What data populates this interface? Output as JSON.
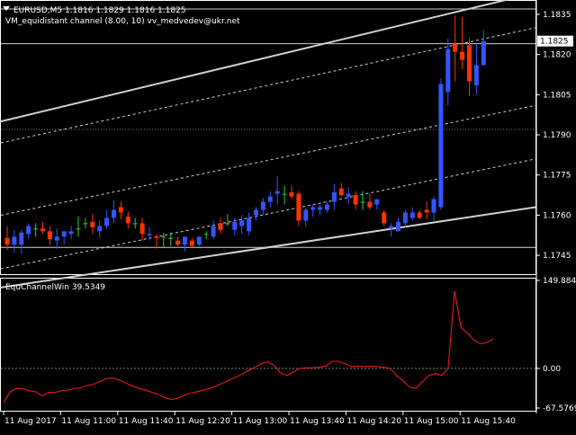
{
  "window": {
    "symbol_title": "EURUSD,M5  1.1816 1.1829 1.1816 1.1825",
    "indicator_label": "VM_equidistant channel (8.00,  10)  vv_medvedev@ukr.net"
  },
  "colors": {
    "background": "#000000",
    "bull_candle": "#3355ff",
    "bear_candle": "#ff3300",
    "doji_candle": "#33cc33",
    "channel_line": "#d0d0d0",
    "oscillator": "#ff1a1a",
    "grid_dot": "#808080",
    "axis": "#ffffff"
  },
  "chart_data": [
    {
      "type": "candlestick",
      "title": "EURUSD,M5  1.1816 1.1829 1.1816 1.1825",
      "ylim": [
        1.1738,
        1.184
      ],
      "y_ticks": [
        "1.1835",
        "1.1820",
        "1.1805",
        "1.1790",
        "1.1775",
        "1.1760",
        "1.1745"
      ],
      "y_tick_values": [
        1.1835,
        1.182,
        1.1805,
        1.179,
        1.1775,
        1.176,
        1.1745
      ],
      "current_price_label": "1.1825",
      "current_price": 1.1825,
      "candles": [
        {
          "o": 1.17515,
          "h": 1.1756,
          "l": 1.1747,
          "c": 1.1749
        },
        {
          "o": 1.1749,
          "h": 1.17545,
          "l": 1.1746,
          "c": 1.1752
        },
        {
          "o": 1.1749,
          "h": 1.17545,
          "l": 1.17455,
          "c": 1.17535
        },
        {
          "o": 1.1753,
          "h": 1.1757,
          "l": 1.1751,
          "c": 1.1756
        },
        {
          "o": 1.1755,
          "h": 1.1757,
          "l": 1.1752,
          "c": 1.1755
        },
        {
          "o": 1.1755,
          "h": 1.17575,
          "l": 1.1753,
          "c": 1.1754
        },
        {
          "o": 1.1754,
          "h": 1.1756,
          "l": 1.1749,
          "c": 1.1751
        },
        {
          "o": 1.17505,
          "h": 1.1755,
          "l": 1.17475,
          "c": 1.1752
        },
        {
          "o": 1.1752,
          "h": 1.1754,
          "l": 1.1749,
          "c": 1.1754
        },
        {
          "o": 1.1753,
          "h": 1.1756,
          "l": 1.1751,
          "c": 1.1754
        },
        {
          "o": 1.1755,
          "h": 1.17595,
          "l": 1.1752,
          "c": 1.1755
        },
        {
          "o": 1.1757,
          "h": 1.1759,
          "l": 1.1755,
          "c": 1.1757
        },
        {
          "o": 1.17575,
          "h": 1.17605,
          "l": 1.1753,
          "c": 1.17555
        },
        {
          "o": 1.1754,
          "h": 1.1758,
          "l": 1.17515,
          "c": 1.1756
        },
        {
          "o": 1.1756,
          "h": 1.1762,
          "l": 1.1755,
          "c": 1.1759
        },
        {
          "o": 1.1759,
          "h": 1.17655,
          "l": 1.1757,
          "c": 1.1762
        },
        {
          "o": 1.1763,
          "h": 1.1765,
          "l": 1.17585,
          "c": 1.1761
        },
        {
          "o": 1.17595,
          "h": 1.17615,
          "l": 1.1755,
          "c": 1.1757
        },
        {
          "o": 1.1757,
          "h": 1.1759,
          "l": 1.1755,
          "c": 1.1757
        },
        {
          "o": 1.1757,
          "h": 1.1759,
          "l": 1.17505,
          "c": 1.1753
        },
        {
          "o": 1.17525,
          "h": 1.17555,
          "l": 1.17505,
          "c": 1.1753
        },
        {
          "o": 1.1752,
          "h": 1.1753,
          "l": 1.17475,
          "c": 1.17515
        },
        {
          "o": 1.1752,
          "h": 1.17535,
          "l": 1.1748,
          "c": 1.1752
        },
        {
          "o": 1.17515,
          "h": 1.17535,
          "l": 1.17485,
          "c": 1.17515
        },
        {
          "o": 1.17505,
          "h": 1.1752,
          "l": 1.17485,
          "c": 1.1749
        },
        {
          "o": 1.1749,
          "h": 1.1751,
          "l": 1.17465,
          "c": 1.1752
        },
        {
          "o": 1.17505,
          "h": 1.17515,
          "l": 1.17485,
          "c": 1.17485
        },
        {
          "o": 1.1749,
          "h": 1.1752,
          "l": 1.17485,
          "c": 1.1752
        },
        {
          "o": 1.1753,
          "h": 1.1754,
          "l": 1.1751,
          "c": 1.1753
        },
        {
          "o": 1.1752,
          "h": 1.1758,
          "l": 1.1751,
          "c": 1.1756
        },
        {
          "o": 1.1757,
          "h": 1.1759,
          "l": 1.1753,
          "c": 1.17545
        },
        {
          "o": 1.1757,
          "h": 1.17605,
          "l": 1.1756,
          "c": 1.1757
        },
        {
          "o": 1.17545,
          "h": 1.1759,
          "l": 1.17525,
          "c": 1.17575
        },
        {
          "o": 1.1756,
          "h": 1.176,
          "l": 1.1753,
          "c": 1.1758
        },
        {
          "o": 1.1754,
          "h": 1.1761,
          "l": 1.17525,
          "c": 1.1759
        },
        {
          "o": 1.176,
          "h": 1.1763,
          "l": 1.1758,
          "c": 1.1762
        },
        {
          "o": 1.1762,
          "h": 1.17665,
          "l": 1.176,
          "c": 1.1765
        },
        {
          "o": 1.1765,
          "h": 1.1769,
          "l": 1.1763,
          "c": 1.1767
        },
        {
          "o": 1.1768,
          "h": 1.17745,
          "l": 1.1764,
          "c": 1.1769
        },
        {
          "o": 1.1768,
          "h": 1.1771,
          "l": 1.1764,
          "c": 1.1768
        },
        {
          "o": 1.17685,
          "h": 1.1771,
          "l": 1.1766,
          "c": 1.1767
        },
        {
          "o": 1.1768,
          "h": 1.1769,
          "l": 1.1756,
          "c": 1.1758
        },
        {
          "o": 1.1758,
          "h": 1.1763,
          "l": 1.17555,
          "c": 1.1762
        },
        {
          "o": 1.1762,
          "h": 1.1764,
          "l": 1.17595,
          "c": 1.1763
        },
        {
          "o": 1.1762,
          "h": 1.1764,
          "l": 1.176,
          "c": 1.1763
        },
        {
          "o": 1.1762,
          "h": 1.1765,
          "l": 1.1761,
          "c": 1.1764
        },
        {
          "o": 1.1765,
          "h": 1.17715,
          "l": 1.1762,
          "c": 1.17685
        },
        {
          "o": 1.177,
          "h": 1.1772,
          "l": 1.1767,
          "c": 1.17675
        },
        {
          "o": 1.1767,
          "h": 1.17705,
          "l": 1.1764,
          "c": 1.1768
        },
        {
          "o": 1.17675,
          "h": 1.1769,
          "l": 1.1762,
          "c": 1.1764
        },
        {
          "o": 1.1765,
          "h": 1.1769,
          "l": 1.1762,
          "c": 1.1765
        },
        {
          "o": 1.1765,
          "h": 1.1768,
          "l": 1.1762,
          "c": 1.1763
        },
        {
          "o": 1.1764,
          "h": 1.1766,
          "l": 1.1762,
          "c": 1.1766
        },
        {
          "o": 1.1761,
          "h": 1.1762,
          "l": 1.1756,
          "c": 1.1757
        },
        {
          "o": 1.1755,
          "h": 1.1757,
          "l": 1.1752,
          "c": 1.1756
        },
        {
          "o": 1.1754,
          "h": 1.1759,
          "l": 1.1754,
          "c": 1.17575
        },
        {
          "o": 1.1757,
          "h": 1.1762,
          "l": 1.17555,
          "c": 1.1761
        },
        {
          "o": 1.1759,
          "h": 1.1763,
          "l": 1.1758,
          "c": 1.1761
        },
        {
          "o": 1.1761,
          "h": 1.1762,
          "l": 1.17585,
          "c": 1.1759
        },
        {
          "o": 1.1762,
          "h": 1.1765,
          "l": 1.17585,
          "c": 1.1761
        },
        {
          "o": 1.1761,
          "h": 1.1767,
          "l": 1.1758,
          "c": 1.1766
        },
        {
          "o": 1.1763,
          "h": 1.1811,
          "l": 1.1762,
          "c": 1.1809
        },
        {
          "o": 1.1806,
          "h": 1.1826,
          "l": 1.1801,
          "c": 1.1822
        },
        {
          "o": 1.1824,
          "h": 1.18345,
          "l": 1.181,
          "c": 1.1821
        },
        {
          "o": 1.1821,
          "h": 1.1834,
          "l": 1.18145,
          "c": 1.1818
        },
        {
          "o": 1.18235,
          "h": 1.1826,
          "l": 1.18045,
          "c": 1.181
        },
        {
          "o": 1.18085,
          "h": 1.1824,
          "l": 1.1805,
          "c": 1.1816
        },
        {
          "o": 1.1816,
          "h": 1.1829,
          "l": 1.1816,
          "c": 1.1825
        }
      ],
      "channel_lines": [
        {
          "style": "solid",
          "start": 1.1795,
          "end": 1.1843
        },
        {
          "style": "dashed",
          "start": 1.1787,
          "end": 1.183
        },
        {
          "style": "dotted",
          "start": 1.1792,
          "end": 1.1792
        },
        {
          "style": "dashed",
          "start": 1.176,
          "end": 1.1801
        },
        {
          "style": "dashed",
          "start": 1.174,
          "end": 1.1781
        },
        {
          "style": "solid",
          "start": 1.1733,
          "end": 1.1763
        }
      ],
      "horizontal_levels": [
        {
          "style": "solid",
          "value": 1.1837
        },
        {
          "style": "solid",
          "value": 1.1824
        },
        {
          "style": "solid",
          "value": 1.1748
        }
      ]
    },
    {
      "type": "line",
      "title": "EquChannelWin 39.5349",
      "ylim": [
        -67.5769,
        149.8846
      ],
      "y_ticks": [
        "149.8846",
        "0.00",
        "-67.5769"
      ],
      "y_tick_values": [
        149.8846,
        0.0,
        -67.5769
      ],
      "zero_level": 0,
      "x_ticks": [
        "11 Aug 2017",
        "11 Aug 11:00",
        "11 Aug 11:40",
        "11 Aug 12:20",
        "11 Aug 13:00",
        "11 Aug 13:40",
        "11 Aug 14:20",
        "11 Aug 15:00",
        "11 Aug 15:40"
      ],
      "series": [
        {
          "values": [
            -58,
            -40,
            -34,
            -35,
            -38,
            -40,
            -47,
            -41,
            -41,
            -38,
            -37,
            -34,
            -33,
            -29,
            -27,
            -22,
            -17,
            -17,
            -20,
            -25,
            -30,
            -34,
            -37,
            -41,
            -44,
            -50,
            -53,
            -51,
            -46,
            -42,
            -40,
            -37,
            -34,
            -30,
            -25,
            -20,
            -15,
            -10,
            -4,
            2,
            8,
            11,
            5,
            -8,
            -12,
            -6,
            0,
            1,
            1,
            2,
            4,
            12,
            12,
            8,
            3,
            4,
            3,
            4,
            3,
            2,
            0,
            -12,
            -21,
            -32,
            -34,
            -23,
            -12,
            -9,
            -12,
            0,
            132,
            70,
            60,
            48,
            42,
            44,
            50
          ]
        }
      ]
    }
  ]
}
